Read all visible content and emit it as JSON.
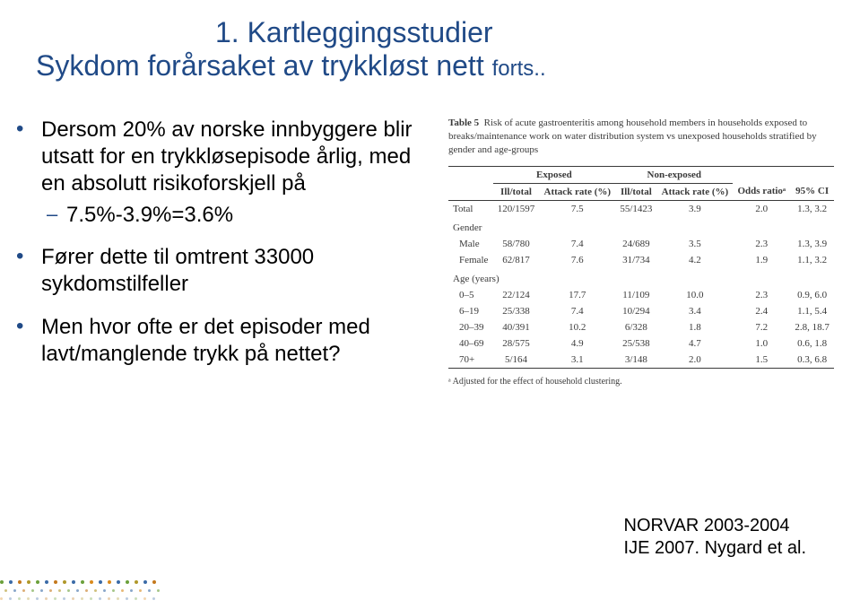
{
  "header": {
    "line1": "1. Kartleggingsstudier",
    "line2_main": "Sykdom forårsaket av trykkløst nett",
    "line2_suffix": "forts..",
    "title_color": "#204a87",
    "body_color": "#000000"
  },
  "bullets": {
    "b1": "Dersom 20% av norske innbyggere blir utsatt for en trykkløsepisode årlig, med en absolutt risikoforskjell på",
    "b1_sub1": "7.5%-3.9%=3.6%",
    "b2": "Fører dette til omtrent  33000 sykdomstilfeller",
    "b3": "Men hvor ofte er det episoder med lavt/manglende trykk på nettet?"
  },
  "table": {
    "caption_label": "Table 5",
    "caption_text": "Risk of acute gastroenteritis among household members in households exposed to breaks/maintenance work on water distribution system vs unexposed households stratified by gender and age-groups",
    "header_exposed": "Exposed",
    "header_nonexposed": "Non-exposed",
    "col_illtotal": "Ill/total",
    "col_attack": "Attack rate (%)",
    "col_odds": "Odds ratioᵃ",
    "col_ci": "95% CI",
    "group_gender": "Gender",
    "group_age": "Age (years)",
    "rows": [
      {
        "label": "Total",
        "e_ill": "120/1597",
        "e_rate": "7.5",
        "n_ill": "55/1423",
        "n_rate": "3.9",
        "or": "2.0",
        "ci": "1.3, 3.2"
      },
      {
        "label": "Male",
        "e_ill": "58/780",
        "e_rate": "7.4",
        "n_ill": "24/689",
        "n_rate": "3.5",
        "or": "2.3",
        "ci": "1.3, 3.9"
      },
      {
        "label": "Female",
        "e_ill": "62/817",
        "e_rate": "7.6",
        "n_ill": "31/734",
        "n_rate": "4.2",
        "or": "1.9",
        "ci": "1.1, 3.2"
      },
      {
        "label": "0–5",
        "e_ill": "22/124",
        "e_rate": "17.7",
        "n_ill": "11/109",
        "n_rate": "10.0",
        "or": "2.3",
        "ci": "0.9, 6.0"
      },
      {
        "label": "6–19",
        "e_ill": "25/338",
        "e_rate": "7.4",
        "n_ill": "10/294",
        "n_rate": "3.4",
        "or": "2.4",
        "ci": "1.1, 5.4"
      },
      {
        "label": "20–39",
        "e_ill": "40/391",
        "e_rate": "10.2",
        "n_ill": "6/328",
        "n_rate": "1.8",
        "or": "7.2",
        "ci": "2.8, 18.7"
      },
      {
        "label": "40–69",
        "e_ill": "28/575",
        "e_rate": "4.9",
        "n_ill": "25/538",
        "n_rate": "4.7",
        "or": "1.0",
        "ci": "0.6, 1.8"
      },
      {
        "label": "70+",
        "e_ill": "5/164",
        "e_rate": "3.1",
        "n_ill": "3/148",
        "n_rate": "2.0",
        "or": "1.5",
        "ci": "0.3, 6.8"
      }
    ],
    "footnote": "ᵃ Adjusted for the effect of household clustering."
  },
  "citation": {
    "line1": "NORVAR 2003-2004",
    "line2": "IJE 2007. Nygard et al."
  },
  "dots": {
    "colors_row3": [
      "#d98a1c",
      "#3a6aa7",
      "#6aa03a",
      "#b0982a",
      "#3a6aa7",
      "#c4781c",
      "#6aa03a",
      "#3a6aa7",
      "#c4781c",
      "#b0982a",
      "#6aa03a",
      "#3a6aa7",
      "#c4781c",
      "#b0982a",
      "#3a6aa7",
      "#6aa03a",
      "#d98a1c",
      "#3a6aa7"
    ],
    "size_large": 4,
    "size_small": 3
  }
}
